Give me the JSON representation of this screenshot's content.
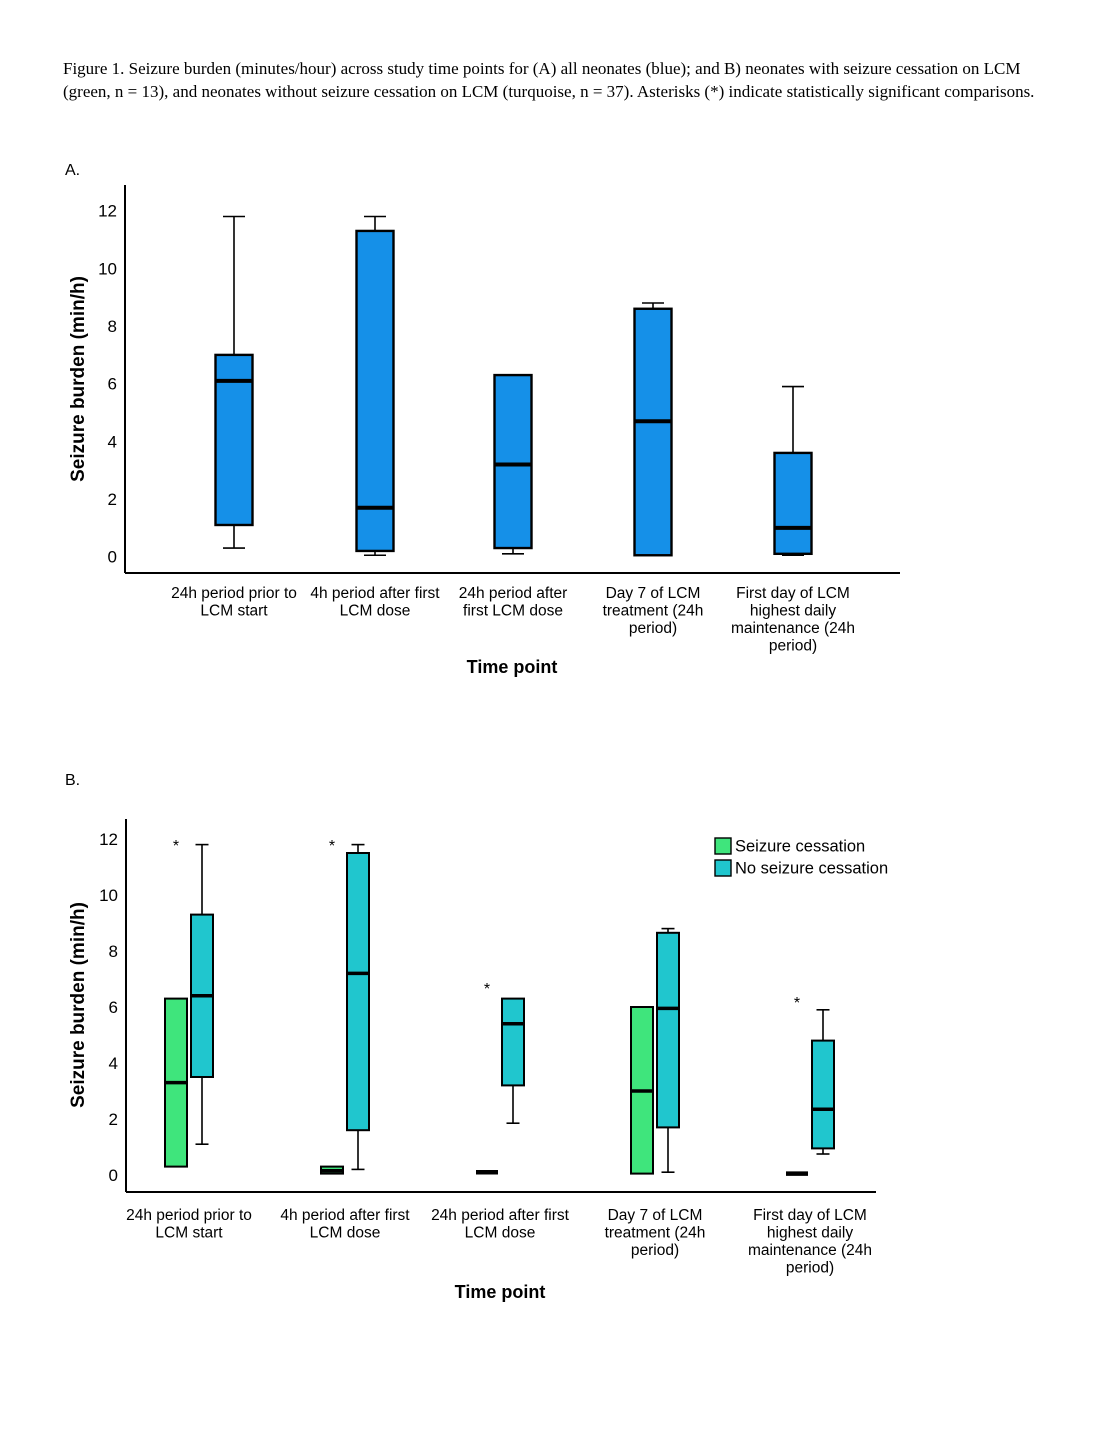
{
  "figure_caption": "Figure 1. Seizure burden (minutes/hour) across study time points for (A) all neonates (blue); and B) neonates with seizure cessation on LCM (green, n = 13), and neonates without seizure cessation on LCM (turquoise, n = 37). Asterisks (*) indicate statistically significant comparisons.",
  "panel_a_label": "A.",
  "panel_b_label": "B.",
  "colors": {
    "all_neonates_blue": "#1590E8",
    "seizure_cessation_green": "#3FE57C",
    "no_seizure_cessation_turquoise": "#20C6CE",
    "stroke_black": "#000000"
  },
  "chart_data": [
    {
      "id": "panel-a",
      "type": "boxplot",
      "panel": "A",
      "ylabel": "Seizure burden (min/h)",
      "xlabel": "Time point",
      "ylim": [
        0,
        12
      ],
      "yticks": [
        0,
        2,
        4,
        6,
        8,
        10,
        12
      ],
      "grid": false,
      "categories": [
        [
          "24h period prior to",
          "LCM start"
        ],
        [
          "4h period after first",
          "LCM dose"
        ],
        [
          "24h period after",
          "first LCM dose"
        ],
        [
          "Day 7 of LCM",
          "treatment (24h",
          "period)"
        ],
        [
          "First day of LCM",
          "highest daily",
          "maintenance (24h",
          "period)"
        ]
      ],
      "series": [
        {
          "name": "All neonates",
          "color": "#1590E8",
          "boxes": [
            {
              "min": 0.3,
              "q1": 1.1,
              "median": 6.1,
              "q3": 7.0,
              "max": 11.8
            },
            {
              "min": 0.05,
              "q1": 0.2,
              "median": 1.7,
              "q3": 11.3,
              "max": 11.8
            },
            {
              "min": 0.1,
              "q1": 0.3,
              "median": 3.2,
              "q3": 6.3,
              "max": 6.3
            },
            {
              "min": 0.05,
              "q1": 0.05,
              "median": 4.7,
              "q3": 8.6,
              "max": 8.8
            },
            {
              "min": 0.05,
              "q1": 0.1,
              "median": 1.0,
              "q3": 3.6,
              "max": 5.9
            }
          ]
        }
      ],
      "annotations": []
    },
    {
      "id": "panel-b",
      "type": "boxplot",
      "panel": "B",
      "ylabel": "Seizure burden (min/h)",
      "xlabel": "Time point",
      "ylim": [
        0,
        12
      ],
      "yticks": [
        0,
        2,
        4,
        6,
        8,
        10,
        12
      ],
      "grid": false,
      "categories": [
        [
          "24h period prior to",
          "LCM start"
        ],
        [
          "4h period after first",
          "LCM dose"
        ],
        [
          "24h period after first",
          "LCM dose"
        ],
        [
          "Day 7 of LCM",
          "treatment (24h",
          "period)"
        ],
        [
          "First day of LCM",
          "highest daily",
          "maintenance (24h",
          "period)"
        ]
      ],
      "series": [
        {
          "name": "Seizure cessation",
          "color": "#3FE57C",
          "boxes": [
            {
              "min": 0.3,
              "q1": 0.3,
              "median": 3.3,
              "q3": 6.3,
              "max": 6.3
            },
            {
              "min": 0.05,
              "q1": 0.05,
              "median": 0.15,
              "q3": 0.3,
              "max": 0.3
            },
            {
              "min": 0.1,
              "q1": 0.1,
              "median": 0.1,
              "q3": 0.1,
              "max": 0.1
            },
            {
              "min": 0.05,
              "q1": 0.05,
              "median": 3.0,
              "q3": 6.0,
              "max": 6.0
            },
            {
              "min": 0.05,
              "q1": 0.05,
              "median": 0.05,
              "q3": 0.05,
              "max": 0.05
            }
          ]
        },
        {
          "name": "No seizure cessation",
          "color": "#20C6CE",
          "boxes": [
            {
              "min": 1.1,
              "q1": 3.5,
              "median": 6.4,
              "q3": 9.3,
              "max": 11.8
            },
            {
              "min": 0.2,
              "q1": 1.6,
              "median": 7.2,
              "q3": 11.5,
              "max": 11.8
            },
            {
              "min": 1.85,
              "q1": 3.2,
              "median": 5.4,
              "q3": 6.3,
              "max": 6.3
            },
            {
              "min": 0.1,
              "q1": 1.7,
              "median": 5.95,
              "q3": 8.65,
              "max": 8.8
            },
            {
              "min": 0.75,
              "q1": 0.95,
              "median": 2.35,
              "q3": 4.8,
              "max": 5.9
            }
          ]
        }
      ],
      "legend": {
        "position": "top-right",
        "entries": [
          "Seizure cessation",
          "No seizure cessation"
        ]
      },
      "annotations": [
        {
          "text": "*",
          "category": 0,
          "series": 0,
          "y": 12.0
        },
        {
          "text": "*",
          "category": 1,
          "series": 0,
          "y": 12.0
        },
        {
          "text": "*",
          "category": 2,
          "series": 0,
          "y": 6.9
        },
        {
          "text": "*",
          "category": 4,
          "series": 0,
          "y": 6.4
        }
      ]
    }
  ]
}
